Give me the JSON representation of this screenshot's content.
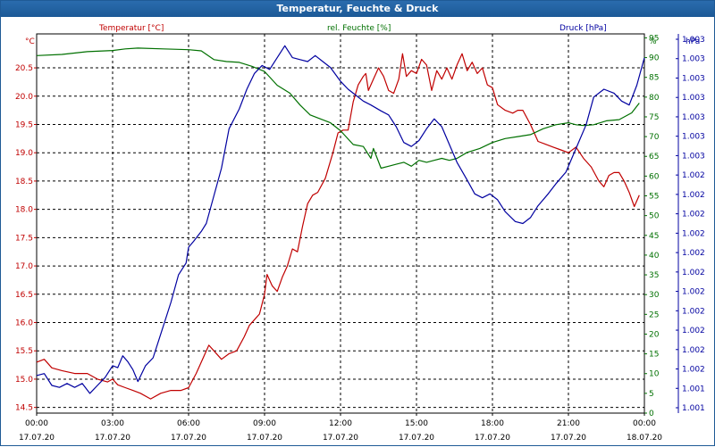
{
  "window": {
    "title": "Temperatur, Feuchte & Druck"
  },
  "chart_data": {
    "type": "line",
    "x_ticks": [
      {
        "time": "00:00",
        "date": "17.07.20"
      },
      {
        "time": "03:00",
        "date": "17.07.20"
      },
      {
        "time": "06:00",
        "date": "17.07.20"
      },
      {
        "time": "09:00",
        "date": "17.07.20"
      },
      {
        "time": "12:00",
        "date": "17.07.20"
      },
      {
        "time": "15:00",
        "date": "17.07.20"
      },
      {
        "time": "18:00",
        "date": "17.07.20"
      },
      {
        "time": "21:00",
        "date": "17.07.20"
      },
      {
        "time": "00:00",
        "date": "18.07.20"
      }
    ],
    "xlim_hours": [
      0,
      24
    ],
    "grid": true,
    "axes": {
      "temperature": {
        "label": "Temperatur [°C]",
        "unit": "°C",
        "color": "#c00000",
        "ylim": [
          14.4,
          21.1
        ],
        "ticks": [
          "14.5",
          "15.0",
          "15.5",
          "16.0",
          "16.5",
          "17.0",
          "17.5",
          "18.0",
          "18.5",
          "19.0",
          "19.5",
          "20.0",
          "20.5"
        ]
      },
      "humidity": {
        "label": "rel. Feuchte [%]",
        "unit": "%",
        "color": "#007000",
        "ylim": [
          0,
          96
        ],
        "ticks": [
          "0",
          "5",
          "10",
          "15",
          "20",
          "25",
          "30",
          "35",
          "40",
          "45",
          "50",
          "55",
          "60",
          "65",
          "70",
          "75",
          "80",
          "85",
          "90",
          "95"
        ]
      },
      "pressure": {
        "label": "Druck [hPa]",
        "unit": "hPa",
        "color": "#0000a0",
        "ticks": [
          "1.001",
          "1.001",
          "1.002",
          "1.002",
          "1.002",
          "1.002",
          "1.002",
          "1.002",
          "1.002",
          "1.002",
          "1.002",
          "1.002",
          "1.002",
          "1.003",
          "1.003",
          "1.003",
          "1.003",
          "1.003",
          "1.003",
          "1.003"
        ]
      }
    },
    "series": [
      {
        "name": "Temperatur [°C]",
        "axis": "temperature",
        "color": "#c00000",
        "points": [
          [
            0,
            15.3
          ],
          [
            0.3,
            15.35
          ],
          [
            0.6,
            15.2
          ],
          [
            1.0,
            15.15
          ],
          [
            1.5,
            15.1
          ],
          [
            2.0,
            15.1
          ],
          [
            2.4,
            15.0
          ],
          [
            2.8,
            14.95
          ],
          [
            3.0,
            15.0
          ],
          [
            3.2,
            14.9
          ],
          [
            3.5,
            14.85
          ],
          [
            3.8,
            14.8
          ],
          [
            4.1,
            14.75
          ],
          [
            4.5,
            14.65
          ],
          [
            4.9,
            14.75
          ],
          [
            5.3,
            14.8
          ],
          [
            5.7,
            14.8
          ],
          [
            6.0,
            14.85
          ],
          [
            6.3,
            15.1
          ],
          [
            6.6,
            15.4
          ],
          [
            6.8,
            15.6
          ],
          [
            7.0,
            15.5
          ],
          [
            7.3,
            15.35
          ],
          [
            7.6,
            15.45
          ],
          [
            7.9,
            15.5
          ],
          [
            8.2,
            15.75
          ],
          [
            8.4,
            15.95
          ],
          [
            8.6,
            16.05
          ],
          [
            8.8,
            16.15
          ],
          [
            9.0,
            16.5
          ],
          [
            9.1,
            16.85
          ],
          [
            9.3,
            16.65
          ],
          [
            9.5,
            16.55
          ],
          [
            9.7,
            16.8
          ],
          [
            9.9,
            17.0
          ],
          [
            10.1,
            17.3
          ],
          [
            10.3,
            17.25
          ],
          [
            10.5,
            17.7
          ],
          [
            10.7,
            18.1
          ],
          [
            10.9,
            18.25
          ],
          [
            11.1,
            18.3
          ],
          [
            11.4,
            18.55
          ],
          [
            11.7,
            19.0
          ],
          [
            11.9,
            19.35
          ],
          [
            12.1,
            19.4
          ],
          [
            12.3,
            19.4
          ],
          [
            12.5,
            19.9
          ],
          [
            12.7,
            20.2
          ],
          [
            12.9,
            20.35
          ],
          [
            13.0,
            20.4
          ],
          [
            13.1,
            20.1
          ],
          [
            13.3,
            20.3
          ],
          [
            13.5,
            20.5
          ],
          [
            13.7,
            20.35
          ],
          [
            13.9,
            20.1
          ],
          [
            14.1,
            20.05
          ],
          [
            14.3,
            20.3
          ],
          [
            14.45,
            20.75
          ],
          [
            14.6,
            20.35
          ],
          [
            14.8,
            20.45
          ],
          [
            15.0,
            20.4
          ],
          [
            15.2,
            20.65
          ],
          [
            15.4,
            20.55
          ],
          [
            15.6,
            20.1
          ],
          [
            15.8,
            20.45
          ],
          [
            16.0,
            20.3
          ],
          [
            16.2,
            20.5
          ],
          [
            16.4,
            20.3
          ],
          [
            16.6,
            20.55
          ],
          [
            16.8,
            20.75
          ],
          [
            17.0,
            20.45
          ],
          [
            17.2,
            20.6
          ],
          [
            17.4,
            20.4
          ],
          [
            17.6,
            20.5
          ],
          [
            17.8,
            20.2
          ],
          [
            18.0,
            20.15
          ],
          [
            18.2,
            19.85
          ],
          [
            18.5,
            19.75
          ],
          [
            18.8,
            19.7
          ],
          [
            19.0,
            19.75
          ],
          [
            19.2,
            19.75
          ],
          [
            19.5,
            19.5
          ],
          [
            19.8,
            19.2
          ],
          [
            20.1,
            19.15
          ],
          [
            20.4,
            19.1
          ],
          [
            20.7,
            19.05
          ],
          [
            21.0,
            19.0
          ],
          [
            21.3,
            19.1
          ],
          [
            21.6,
            18.9
          ],
          [
            21.9,
            18.75
          ],
          [
            22.2,
            18.5
          ],
          [
            22.4,
            18.4
          ],
          [
            22.6,
            18.6
          ],
          [
            22.8,
            18.65
          ],
          [
            23.0,
            18.65
          ],
          [
            23.2,
            18.5
          ],
          [
            23.4,
            18.3
          ],
          [
            23.6,
            18.05
          ],
          [
            23.8,
            18.25
          ]
        ]
      },
      {
        "name": "rel. Feuchte [%]",
        "axis": "humidity",
        "color": "#007000",
        "points": [
          [
            0,
            90.5
          ],
          [
            1.0,
            90.8
          ],
          [
            2.0,
            91.5
          ],
          [
            3.0,
            91.8
          ],
          [
            3.5,
            92.2
          ],
          [
            4.0,
            92.4
          ],
          [
            5.0,
            92.2
          ],
          [
            6.0,
            92.0
          ],
          [
            6.5,
            91.7
          ],
          [
            7.0,
            89.5
          ],
          [
            7.5,
            89.0
          ],
          [
            8.0,
            88.8
          ],
          [
            8.5,
            87.8
          ],
          [
            9.0,
            86.5
          ],
          [
            9.5,
            83.0
          ],
          [
            10.0,
            81.0
          ],
          [
            10.4,
            78.0
          ],
          [
            10.8,
            75.5
          ],
          [
            11.2,
            74.5
          ],
          [
            11.6,
            73.5
          ],
          [
            12.0,
            71.5
          ],
          [
            12.5,
            68.0
          ],
          [
            12.9,
            67.5
          ],
          [
            13.2,
            64.5
          ],
          [
            13.3,
            67.0
          ],
          [
            13.6,
            62.0
          ],
          [
            13.9,
            62.5
          ],
          [
            14.2,
            63.0
          ],
          [
            14.5,
            63.5
          ],
          [
            14.8,
            62.5
          ],
          [
            15.1,
            64.0
          ],
          [
            15.4,
            63.5
          ],
          [
            15.7,
            64.0
          ],
          [
            16.0,
            64.5
          ],
          [
            16.3,
            64.0
          ],
          [
            16.6,
            64.5
          ],
          [
            17.0,
            66.0
          ],
          [
            17.5,
            67.0
          ],
          [
            18.0,
            68.5
          ],
          [
            18.5,
            69.5
          ],
          [
            19.0,
            70.0
          ],
          [
            19.5,
            70.5
          ],
          [
            20.0,
            72.0
          ],
          [
            20.5,
            73.0
          ],
          [
            21.0,
            73.5
          ],
          [
            21.3,
            73.0
          ],
          [
            21.6,
            72.8
          ],
          [
            22.0,
            73.0
          ],
          [
            22.5,
            74.0
          ],
          [
            23.0,
            74.3
          ],
          [
            23.5,
            76.0
          ],
          [
            23.8,
            78.5
          ]
        ]
      },
      {
        "name": "Druck [hPa]",
        "axis": "pressure",
        "color": "#0000a0",
        "points": [
          [
            0,
            9.5
          ],
          [
            0.3,
            10.0
          ],
          [
            0.6,
            7.0
          ],
          [
            0.9,
            6.5
          ],
          [
            1.2,
            7.5
          ],
          [
            1.5,
            6.5
          ],
          [
            1.8,
            7.5
          ],
          [
            2.1,
            5.0
          ],
          [
            2.4,
            7.0
          ],
          [
            2.7,
            9.0
          ],
          [
            3.0,
            12.0
          ],
          [
            3.2,
            11.5
          ],
          [
            3.4,
            14.5
          ],
          [
            3.6,
            13.0
          ],
          [
            3.8,
            11.0
          ],
          [
            4.0,
            8.0
          ],
          [
            4.3,
            12.0
          ],
          [
            4.6,
            14.0
          ],
          [
            5.0,
            22.0
          ],
          [
            5.3,
            28.0
          ],
          [
            5.6,
            35.0
          ],
          [
            5.9,
            38.0
          ],
          [
            6.0,
            42.0
          ],
          [
            6.2,
            43.5
          ],
          [
            6.5,
            46.0
          ],
          [
            6.7,
            48.0
          ],
          [
            7.0,
            55.0
          ],
          [
            7.3,
            62.0
          ],
          [
            7.6,
            72.0
          ],
          [
            8.0,
            77.0
          ],
          [
            8.3,
            82.0
          ],
          [
            8.6,
            86.0
          ],
          [
            8.9,
            88.0
          ],
          [
            9.2,
            87.0
          ],
          [
            9.5,
            90.0
          ],
          [
            9.8,
            93.0
          ],
          [
            10.1,
            90.0
          ],
          [
            10.4,
            89.5
          ],
          [
            10.7,
            89.0
          ],
          [
            11.0,
            90.5
          ],
          [
            11.3,
            89.0
          ],
          [
            11.6,
            87.5
          ],
          [
            12.0,
            84.0
          ],
          [
            12.3,
            82.0
          ],
          [
            12.6,
            80.5
          ],
          [
            12.9,
            79.0
          ],
          [
            13.2,
            78.0
          ],
          [
            13.6,
            76.5
          ],
          [
            13.9,
            75.5
          ],
          [
            14.2,
            72.5
          ],
          [
            14.5,
            68.5
          ],
          [
            14.8,
            67.5
          ],
          [
            15.1,
            69.0
          ],
          [
            15.4,
            72.0
          ],
          [
            15.7,
            74.5
          ],
          [
            16.0,
            72.5
          ],
          [
            16.3,
            68.0
          ],
          [
            16.6,
            63.5
          ],
          [
            17.0,
            59.0
          ],
          [
            17.3,
            55.5
          ],
          [
            17.6,
            54.5
          ],
          [
            17.9,
            55.5
          ],
          [
            18.2,
            54.0
          ],
          [
            18.5,
            51.0
          ],
          [
            18.9,
            48.5
          ],
          [
            19.2,
            48.0
          ],
          [
            19.5,
            49.5
          ],
          [
            19.8,
            52.5
          ],
          [
            20.2,
            55.5
          ],
          [
            20.5,
            58.0
          ],
          [
            20.9,
            61.0
          ],
          [
            21.3,
            67.0
          ],
          [
            21.7,
            73.0
          ],
          [
            22.0,
            80.0
          ],
          [
            22.4,
            82.0
          ],
          [
            22.8,
            81.0
          ],
          [
            23.1,
            79.0
          ],
          [
            23.4,
            78.0
          ],
          [
            23.7,
            83.0
          ],
          [
            24.0,
            90.0
          ]
        ]
      }
    ]
  }
}
